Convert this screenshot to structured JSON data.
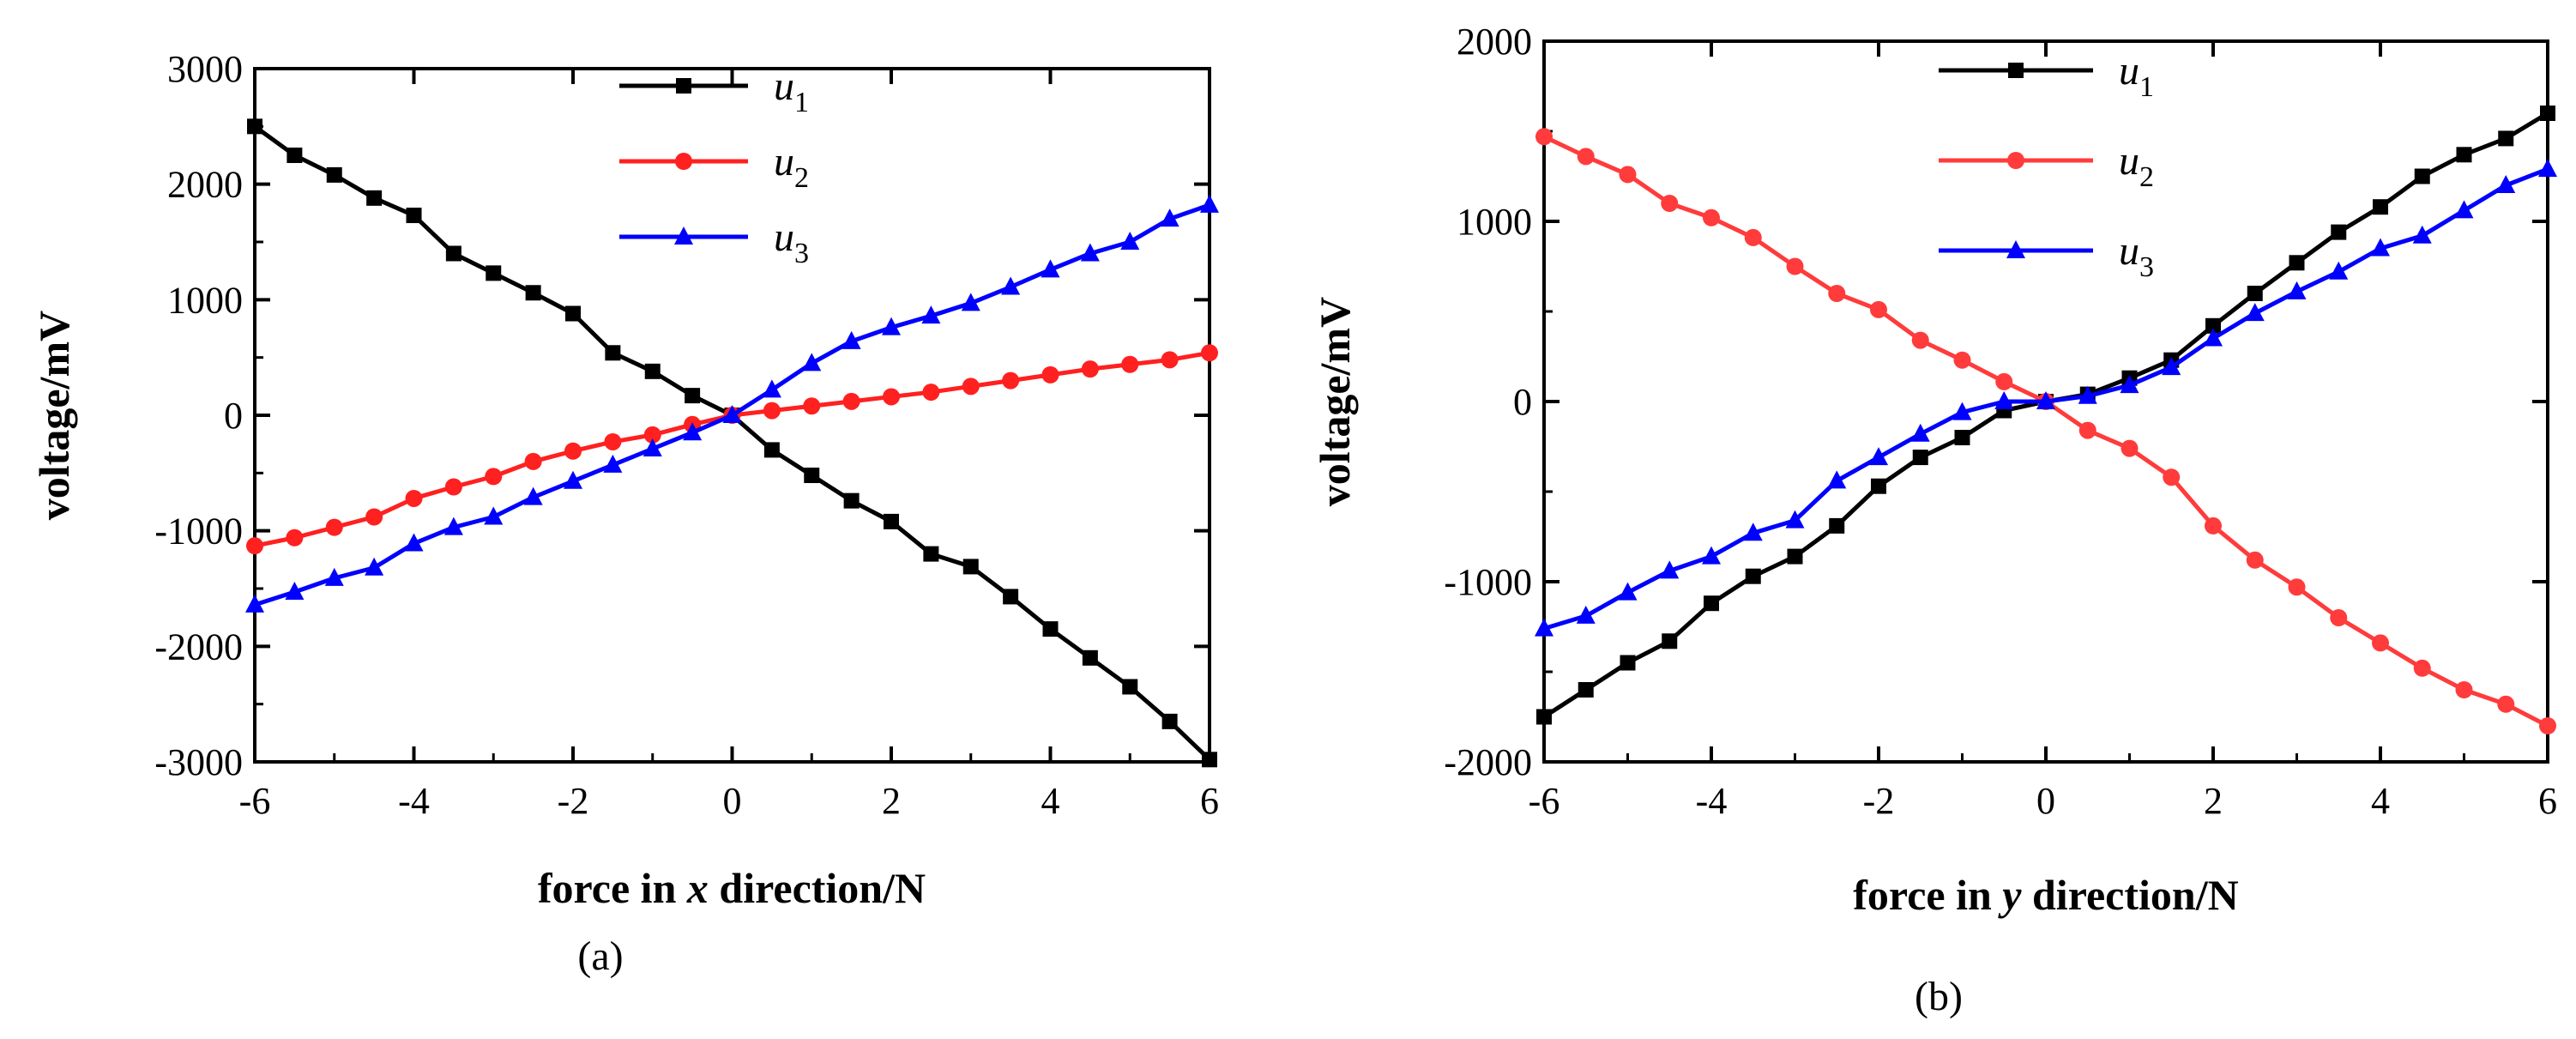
{
  "chart_data": [
    {
      "panel": "(a)",
      "type": "line",
      "xlabel": {
        "prefix": "force in ",
        "var": "x",
        "suffix": " direction/N"
      },
      "ylabel": "voltage/mV",
      "xlim": [
        -6,
        6
      ],
      "ylim": [
        -3000,
        3000
      ],
      "xticks": [
        -6,
        -4,
        -2,
        0,
        2,
        4,
        6
      ],
      "yticks": [
        -3000,
        -2000,
        -1000,
        0,
        1000,
        2000,
        3000
      ],
      "x": [
        -6,
        -5.5,
        -5,
        -4.5,
        -4,
        -3.5,
        -3,
        -2.5,
        -2,
        -1.5,
        -1,
        -0.5,
        0,
        0.5,
        1,
        1.5,
        2,
        2.5,
        3,
        3.5,
        4,
        4.5,
        5,
        5.5,
        6
      ],
      "series": [
        {
          "name": "u",
          "sub": "1",
          "color": "#000000",
          "marker": "square",
          "values": [
            2500,
            2250,
            2080,
            1880,
            1730,
            1400,
            1230,
            1060,
            880,
            540,
            380,
            170,
            0,
            -300,
            -520,
            -740,
            -920,
            -1200,
            -1310,
            -1570,
            -1850,
            -2100,
            -2350,
            -2650,
            -2980
          ]
        },
        {
          "name": "u",
          "sub": "2",
          "color": "#ff2020",
          "marker": "circle",
          "values": [
            -1130,
            -1060,
            -970,
            -880,
            -720,
            -620,
            -530,
            -400,
            -310,
            -230,
            -170,
            -80,
            0,
            40,
            80,
            120,
            160,
            200,
            250,
            300,
            350,
            400,
            440,
            480,
            540
          ]
        },
        {
          "name": "u",
          "sub": "3",
          "color": "#0000ff",
          "marker": "triangle",
          "values": [
            -1640,
            -1530,
            -1410,
            -1320,
            -1110,
            -970,
            -880,
            -710,
            -570,
            -430,
            -290,
            -150,
            0,
            220,
            450,
            640,
            760,
            860,
            970,
            1110,
            1260,
            1400,
            1500,
            1700,
            1820
          ]
        }
      ]
    },
    {
      "panel": "(b)",
      "type": "line",
      "xlabel": {
        "prefix": "force in ",
        "var": "y",
        "suffix": " direction/N"
      },
      "ylabel": "voltage/mV",
      "xlim": [
        -6,
        6
      ],
      "ylim": [
        -2000,
        2000
      ],
      "xticks": [
        -6,
        -4,
        -2,
        0,
        2,
        4,
        6
      ],
      "yticks": [
        -2000,
        -1000,
        0,
        1000,
        2000
      ],
      "x": [
        -6,
        -5.5,
        -5,
        -4.5,
        -4,
        -3.5,
        -3,
        -2.5,
        -2,
        -1.5,
        -1,
        -0.5,
        0,
        0.5,
        1,
        1.5,
        2,
        2.5,
        3,
        3.5,
        4,
        4.5,
        5,
        5.5,
        6
      ],
      "series": [
        {
          "name": "u",
          "sub": "1",
          "color": "#000000",
          "marker": "square",
          "values": [
            -1750,
            -1600,
            -1450,
            -1330,
            -1120,
            -970,
            -860,
            -690,
            -470,
            -310,
            -200,
            -50,
            0,
            40,
            130,
            230,
            420,
            600,
            770,
            940,
            1080,
            1250,
            1370,
            1460,
            1600
          ]
        },
        {
          "name": "u",
          "sub": "2",
          "color": "#ff3b3b",
          "marker": "circle",
          "values": [
            1470,
            1360,
            1260,
            1100,
            1020,
            910,
            750,
            600,
            510,
            340,
            230,
            110,
            0,
            -160,
            -260,
            -420,
            -690,
            -880,
            -1030,
            -1200,
            -1340,
            -1480,
            -1600,
            -1680,
            -1800
          ]
        },
        {
          "name": "u",
          "sub": "3",
          "color": "#0000ff",
          "marker": "triangle",
          "values": [
            -1260,
            -1190,
            -1060,
            -940,
            -860,
            -730,
            -660,
            -440,
            -310,
            -180,
            -60,
            0,
            0,
            30,
            90,
            190,
            350,
            490,
            610,
            720,
            850,
            920,
            1060,
            1200,
            1290
          ]
        }
      ]
    }
  ]
}
